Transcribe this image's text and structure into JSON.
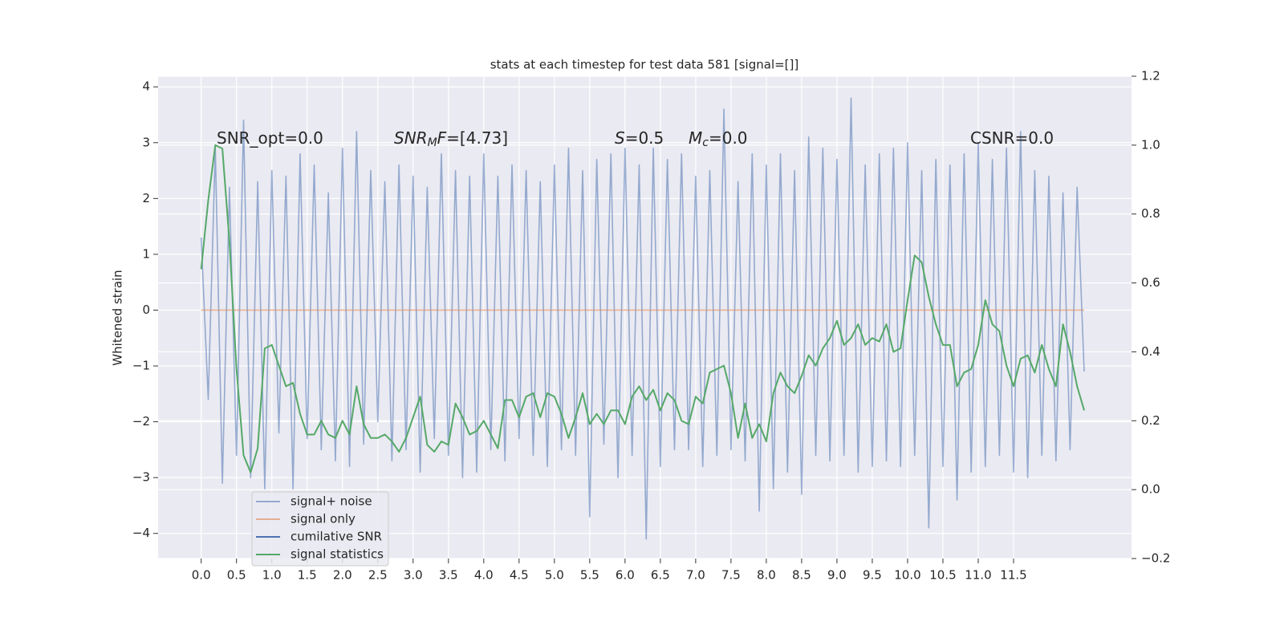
{
  "chart_data": {
    "type": "line",
    "title": "stats at each timestep for test data 581 [signal=[]]",
    "ylabel": "Whitened strain",
    "x": [
      0,
      0.1,
      0.2,
      0.3,
      0.4,
      0.5,
      0.6,
      0.7,
      0.8,
      0.9,
      1,
      1.1,
      1.2,
      1.3,
      1.4,
      1.5,
      1.6,
      1.7,
      1.8,
      1.9,
      2,
      2.1,
      2.2,
      2.3,
      2.4,
      2.5,
      2.6,
      2.7,
      2.8,
      2.9,
      3,
      3.1,
      3.2,
      3.3,
      3.4,
      3.5,
      3.6,
      3.7,
      3.8,
      3.9,
      4,
      4.1,
      4.2,
      4.3,
      4.4,
      4.5,
      4.6,
      4.7,
      4.8,
      4.9,
      5,
      5.1,
      5.2,
      5.3,
      5.4,
      5.5,
      5.6,
      5.7,
      5.8,
      5.9,
      6,
      6.1,
      6.2,
      6.3,
      6.4,
      6.5,
      6.6,
      6.7,
      6.8,
      6.9,
      7,
      7.1,
      7.2,
      7.3,
      7.4,
      7.5,
      7.6,
      7.7,
      7.8,
      7.9,
      8,
      8.1,
      8.2,
      8.3,
      8.4,
      8.5,
      8.6,
      8.7,
      8.8,
      8.9,
      9,
      9.1,
      9.2,
      9.3,
      9.4,
      9.5,
      9.6,
      9.7,
      9.8,
      9.9,
      10,
      10.1,
      10.2,
      10.3,
      10.4,
      10.5,
      10.6,
      10.7,
      10.8,
      10.9,
      11,
      11.1,
      11.2,
      11.3,
      11.4,
      11.5,
      11.6,
      11.7,
      11.8,
      11.9,
      12,
      12.1,
      12.2,
      12.3,
      12.4,
      12.5
    ],
    "series": [
      {
        "name": "signal+ noise",
        "color": "#4c72b0",
        "alpha": 0.55,
        "values": [
          1.3,
          -1.6,
          2.9,
          -3.1,
          2.2,
          -2.6,
          3.4,
          -3.0,
          2.3,
          -3.2,
          2.5,
          -2.2,
          2.4,
          -3.2,
          2.8,
          -2.3,
          2.6,
          -2.5,
          2.1,
          -2.7,
          2.9,
          -2.8,
          3.2,
          -2.4,
          2.5,
          -2.0,
          2.3,
          -2.7,
          2.6,
          -2.5,
          2.4,
          -2.9,
          2.2,
          -2.3,
          2.8,
          -2.6,
          2.5,
          -3.0,
          2.4,
          -2.9,
          2.8,
          -2.5,
          2.4,
          -2.7,
          2.6,
          -2.3,
          2.5,
          -2.6,
          2.3,
          -2.8,
          2.6,
          -2.5,
          2.9,
          -2.6,
          2.5,
          -3.7,
          2.7,
          -2.4,
          2.8,
          -3.0,
          2.9,
          -2.6,
          2.6,
          -4.1,
          2.9,
          -2.8,
          2.7,
          -2.5,
          2.8,
          -2.5,
          2.4,
          -2.8,
          2.5,
          -2.6,
          3.6,
          -2.5,
          2.3,
          -2.7,
          2.8,
          -3.6,
          2.6,
          -3.2,
          2.8,
          -2.9,
          2.5,
          -3.3,
          3.1,
          -2.6,
          2.9,
          -2.7,
          2.7,
          -2.6,
          3.8,
          -2.9,
          2.6,
          -2.8,
          2.8,
          -2.7,
          2.9,
          -2.8,
          3.0,
          -2.6,
          2.5,
          -3.9,
          2.7,
          -2.8,
          2.6,
          -3.4,
          2.8,
          -2.9,
          3.0,
          -2.8,
          2.7,
          -2.6,
          2.9,
          -2.9,
          3.2,
          -3.0,
          2.5,
          -2.6,
          2.4,
          -2.7,
          2.1,
          -2.5,
          2.2,
          -1.1
        ]
      },
      {
        "name": "signal only",
        "color": "#dd8452",
        "alpha": 0.6,
        "x": [
          0,
          12.5
        ],
        "values": [
          0,
          0
        ]
      },
      {
        "name": "cumilative SNR",
        "color": "#4c72b0"
      },
      {
        "name": "signal statistics",
        "color": "#55a868",
        "axis": "y2",
        "values": [
          0.64,
          0.84,
          1.0,
          0.99,
          0.72,
          0.35,
          0.1,
          0.05,
          0.12,
          0.41,
          0.42,
          0.36,
          0.3,
          0.31,
          0.22,
          0.16,
          0.16,
          0.2,
          0.16,
          0.15,
          0.2,
          0.16,
          0.3,
          0.19,
          0.15,
          0.15,
          0.16,
          0.14,
          0.11,
          0.15,
          0.21,
          0.27,
          0.13,
          0.11,
          0.14,
          0.13,
          0.25,
          0.21,
          0.16,
          0.17,
          0.2,
          0.16,
          0.12,
          0.26,
          0.26,
          0.21,
          0.27,
          0.28,
          0.21,
          0.28,
          0.27,
          0.22,
          0.15,
          0.21,
          0.28,
          0.19,
          0.22,
          0.19,
          0.23,
          0.23,
          0.19,
          0.27,
          0.3,
          0.26,
          0.29,
          0.23,
          0.28,
          0.26,
          0.2,
          0.19,
          0.27,
          0.25,
          0.34,
          0.35,
          0.36,
          0.28,
          0.15,
          0.25,
          0.15,
          0.19,
          0.14,
          0.28,
          0.34,
          0.3,
          0.28,
          0.33,
          0.39,
          0.36,
          0.41,
          0.44,
          0.49,
          0.42,
          0.44,
          0.48,
          0.42,
          0.44,
          0.43,
          0.48,
          0.4,
          0.41,
          0.55,
          0.68,
          0.66,
          0.56,
          0.48,
          0.42,
          0.42,
          0.3,
          0.34,
          0.35,
          0.42,
          0.55,
          0.48,
          0.46,
          0.36,
          0.3,
          0.38,
          0.39,
          0.34,
          0.42,
          0.35,
          0.3,
          0.48,
          0.4,
          0.3,
          0.23
        ]
      }
    ],
    "xlim": [
      -0.61,
      13.17
    ],
    "xticks": [
      {
        "value": 0,
        "label": "0.0"
      },
      0.5,
      {
        "value": 1,
        "label": "1.0"
      },
      1.5,
      {
        "value": 2,
        "label": "2.0"
      },
      2.5,
      {
        "value": 3,
        "label": "3.0"
      },
      3.5,
      {
        "value": 4,
        "label": "4.0"
      },
      4.5,
      {
        "value": 5,
        "label": "5.0"
      },
      5.5,
      {
        "value": 6,
        "label": "6.0"
      },
      6.5,
      {
        "value": 7,
        "label": "7.0"
      },
      7.5,
      {
        "value": 8,
        "label": "8.0"
      },
      8.5,
      {
        "value": 9,
        "label": "9.0"
      },
      9.5,
      {
        "value": 10,
        "label": "10.0"
      },
      10.5,
      {
        "value": 11,
        "label": "11.0"
      },
      11.5
    ],
    "ylim": [
      -4.45,
      4.19
    ],
    "yticks": [
      {
        "value": -4,
        "label": "−4"
      },
      {
        "value": -3,
        "label": "−3"
      },
      {
        "value": -2,
        "label": "−2"
      },
      {
        "value": -1,
        "label": "−1"
      },
      0,
      1,
      2,
      3,
      4
    ],
    "y2lim": [
      -0.2,
      1.2
    ],
    "y2ticks": [
      {
        "value": -0.2,
        "label": "−0.2"
      },
      {
        "value": 0,
        "label": "0.0"
      },
      0.2,
      0.4,
      0.6,
      0.8,
      {
        "value": 1,
        "label": "1.0"
      },
      1.2
    ],
    "grid": true,
    "annotations": [
      [
        [
          "SNR_opt=0.0",
          "plain"
        ]
      ],
      [
        [
          "SNR",
          "italic"
        ],
        [
          "M",
          "sub"
        ],
        [
          "F",
          "italic"
        ],
        [
          "=[4.73]",
          "plain"
        ]
      ],
      [
        [
          "S",
          "italic"
        ],
        [
          "=0.5",
          "plain"
        ]
      ],
      [
        [
          "M",
          "italic"
        ],
        [
          "c",
          "sub"
        ],
        [
          "=0.0",
          "plain"
        ]
      ],
      [
        [
          "CSNR=0.0",
          "plain"
        ]
      ]
    ]
  }
}
